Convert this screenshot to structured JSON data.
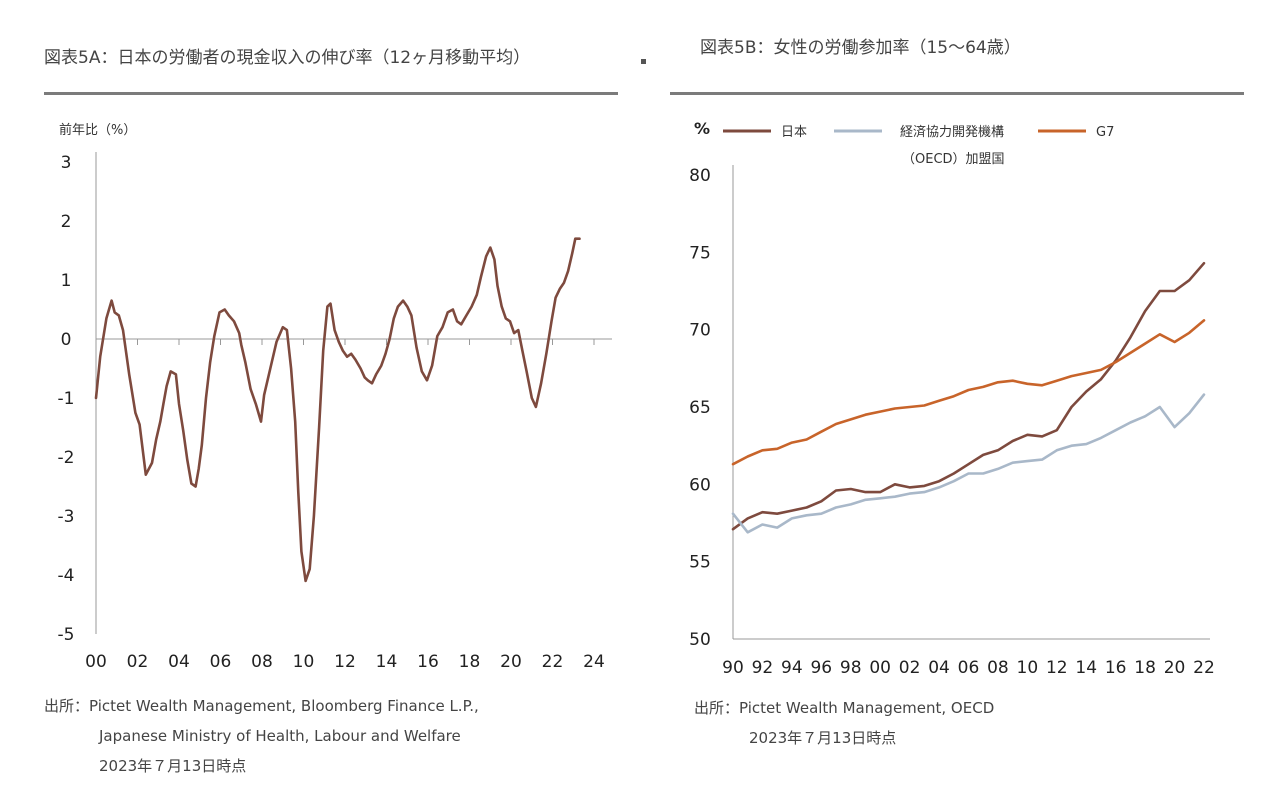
{
  "left": {
    "title": "図表5A：日本の労働者の現金収入の伸び率（12ヶ月移動平均）",
    "unit_label": "前年比（%）",
    "source_lines": [
      "出所：Pictet Wealth Management, Bloomberg Finance L.P.,",
      "Japanese Ministry of Health, Labour and Welfare",
      "2023年７月13日時点"
    ]
  },
  "right": {
    "title": "図表5B：女性の労働参加率（15～64歳）",
    "unit_label": "%",
    "source_lines": [
      "出所：Pictet Wealth Management, OECD",
      "2023年７月13日時点"
    ]
  },
  "colors": {
    "japan": "#7e4a3e",
    "oecd": "#a9b8c9",
    "g7": "#c8642a",
    "axis": "#999999",
    "rule": "#7b7b7b"
  },
  "chart_data": [
    {
      "type": "line",
      "title": "図表5A：日本の労働者の現金収入の伸び率（12ヶ月移動平均）",
      "ylabel": "前年比（%）",
      "xlabel": "",
      "xlim": [
        0,
        24
      ],
      "ylim": [
        -5,
        3
      ],
      "xticks": [
        "00",
        "02",
        "04",
        "06",
        "08",
        "10",
        "12",
        "14",
        "16",
        "18",
        "20",
        "22",
        "24"
      ],
      "yticks": [
        "3",
        "2",
        "1",
        "0",
        "-1",
        "-2",
        "-3",
        "-4",
        "-5"
      ],
      "grid": false,
      "series": [
        {
          "color": "#7e4a3e",
          "x": [
            0.0,
            0.2,
            0.5,
            0.75,
            0.9,
            1.1,
            1.3,
            1.6,
            1.9,
            2.1,
            2.4,
            2.7,
            2.9,
            3.1,
            3.25,
            3.4,
            3.6,
            3.85,
            4.0,
            4.2,
            4.4,
            4.6,
            4.8,
            4.95,
            5.1,
            5.3,
            5.5,
            5.7,
            5.95,
            6.2,
            6.4,
            6.65,
            6.9,
            7.0,
            7.2,
            7.45,
            7.7,
            7.95,
            8.1,
            8.4,
            8.7,
            9.0,
            9.2,
            9.4,
            9.6,
            9.75,
            9.9,
            10.1,
            10.3,
            10.5,
            10.75,
            10.95,
            11.15,
            11.3,
            11.5,
            11.7,
            11.9,
            12.1,
            12.3,
            12.5,
            12.75,
            12.95,
            13.1,
            13.3,
            13.5,
            13.75,
            13.95,
            14.15,
            14.35,
            14.55,
            14.8,
            15.0,
            15.2,
            15.45,
            15.7,
            15.95,
            16.2,
            16.45,
            16.7,
            16.95,
            17.2,
            17.4,
            17.6,
            17.85,
            18.1,
            18.35,
            18.55,
            18.8,
            19.0,
            19.2,
            19.35,
            19.55,
            19.75,
            19.95,
            20.15,
            20.35,
            20.55,
            20.75,
            21.0,
            21.2,
            21.45,
            21.7,
            21.95,
            22.15,
            22.35,
            22.55,
            22.75,
            22.95,
            23.1,
            23.3
          ],
          "y": [
            -1.0,
            -0.3,
            0.35,
            0.65,
            0.45,
            0.4,
            0.15,
            -0.6,
            -1.25,
            -1.45,
            -2.3,
            -2.1,
            -1.7,
            -1.4,
            -1.1,
            -0.8,
            -0.55,
            -0.6,
            -1.1,
            -1.55,
            -2.05,
            -2.45,
            -2.5,
            -2.2,
            -1.8,
            -1.0,
            -0.4,
            0.05,
            0.45,
            0.5,
            0.4,
            0.3,
            0.1,
            -0.1,
            -0.4,
            -0.85,
            -1.1,
            -1.4,
            -0.95,
            -0.5,
            -0.05,
            0.2,
            0.15,
            -0.5,
            -1.4,
            -2.6,
            -3.6,
            -4.1,
            -3.9,
            -3.0,
            -1.5,
            -0.2,
            0.55,
            0.6,
            0.15,
            -0.05,
            -0.2,
            -0.3,
            -0.25,
            -0.35,
            -0.5,
            -0.65,
            -0.7,
            -0.75,
            -0.6,
            -0.45,
            -0.25,
            0.0,
            0.35,
            0.55,
            0.65,
            0.55,
            0.4,
            -0.15,
            -0.55,
            -0.7,
            -0.45,
            0.05,
            0.2,
            0.45,
            0.5,
            0.3,
            0.25,
            0.4,
            0.55,
            0.75,
            1.05,
            1.4,
            1.55,
            1.35,
            0.9,
            0.55,
            0.35,
            0.3,
            0.1,
            0.15,
            -0.2,
            -0.55,
            -1.0,
            -1.15,
            -0.75,
            -0.25,
            0.3,
            0.7,
            0.85,
            0.95,
            1.15,
            1.45,
            1.7,
            1.7
          ]
        }
      ]
    },
    {
      "type": "line",
      "title": "図表5B：女性の労働参加率（15～64歳）",
      "ylabel": "%",
      "xlabel": "",
      "xlim": [
        90,
        122
      ],
      "ylim": [
        50,
        80
      ],
      "xticks": [
        "90",
        "92",
        "94",
        "96",
        "98",
        "00",
        "02",
        "04",
        "06",
        "08",
        "10",
        "12",
        "14",
        "16",
        "18",
        "20",
        "22"
      ],
      "yticks": [
        "80",
        "75",
        "70",
        "65",
        "60",
        "55",
        "50"
      ],
      "grid": false,
      "legend": "top",
      "series": [
        {
          "name": "日本",
          "color": "#7e4a3e",
          "x": [
            90,
            91,
            92,
            93,
            94,
            95,
            96,
            97,
            98,
            99,
            100,
            101,
            102,
            103,
            104,
            105,
            106,
            107,
            108,
            109,
            110,
            111,
            112,
            113,
            114,
            115,
            116,
            117,
            118,
            119,
            120,
            121,
            122
          ],
          "y": [
            57.1,
            57.8,
            58.2,
            58.1,
            58.3,
            58.5,
            58.9,
            59.6,
            59.7,
            59.5,
            59.5,
            60.0,
            59.8,
            59.9,
            60.2,
            60.7,
            61.3,
            61.9,
            62.2,
            62.8,
            63.2,
            63.1,
            63.5,
            65.0,
            66.0,
            66.8,
            68.0,
            69.5,
            71.2,
            72.5,
            72.5,
            73.2,
            74.3
          ]
        },
        {
          "name": "経済協力開発機構（OECD）加盟国",
          "color": "#a9b8c9",
          "x": [
            90,
            91,
            92,
            93,
            94,
            95,
            96,
            97,
            98,
            99,
            100,
            101,
            102,
            103,
            104,
            105,
            106,
            107,
            108,
            109,
            110,
            111,
            112,
            113,
            114,
            115,
            116,
            117,
            118,
            119,
            120,
            121,
            122
          ],
          "y": [
            58.1,
            56.9,
            57.4,
            57.2,
            57.8,
            58.0,
            58.1,
            58.5,
            58.7,
            59.0,
            59.1,
            59.2,
            59.4,
            59.5,
            59.8,
            60.2,
            60.7,
            60.7,
            61.0,
            61.4,
            61.5,
            61.6,
            62.2,
            62.5,
            62.6,
            63.0,
            63.5,
            64.0,
            64.4,
            65.0,
            63.7,
            64.6,
            65.8
          ]
        },
        {
          "name": "G7",
          "color": "#c8642a",
          "x": [
            90,
            91,
            92,
            93,
            94,
            95,
            96,
            97,
            98,
            99,
            100,
            101,
            102,
            103,
            104,
            105,
            106,
            107,
            108,
            109,
            110,
            111,
            112,
            113,
            114,
            115,
            116,
            117,
            118,
            119,
            120,
            121,
            122
          ],
          "y": [
            61.3,
            61.8,
            62.2,
            62.3,
            62.7,
            62.9,
            63.4,
            63.9,
            64.2,
            64.5,
            64.7,
            64.9,
            65.0,
            65.1,
            65.4,
            65.7,
            66.1,
            66.3,
            66.6,
            66.7,
            66.5,
            66.4,
            66.7,
            67.0,
            67.2,
            67.4,
            67.9,
            68.5,
            69.1,
            69.7,
            69.2,
            69.8,
            70.6
          ]
        }
      ]
    }
  ]
}
